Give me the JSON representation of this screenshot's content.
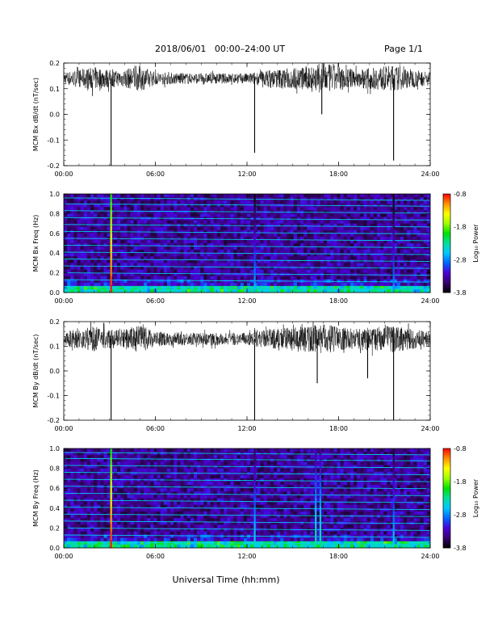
{
  "header": {
    "title": "2018/06/01   00:00–24:00 UT",
    "page": "Page 1/1"
  },
  "footer": {
    "xlabel": "Universal Time (hh:mm)"
  },
  "colorbar": {
    "label": "Log₁₀ Power",
    "ticks": [
      "-0.8",
      "-1.8",
      "-2.8",
      "-3.8"
    ],
    "colors": [
      "#000000",
      "#3a0070",
      "#4b00d8",
      "#0066ff",
      "#00c8ff",
      "#00e0a0",
      "#00e000",
      "#a0ff00",
      "#ffff00",
      "#ff9000",
      "#ff0000"
    ]
  },
  "chart_data": [
    {
      "type": "line",
      "ylabel": "MCM Bx dB/dt (nT/sec)",
      "xticks": [
        "00:00",
        "06:00",
        "12:00",
        "18:00",
        "24:00"
      ],
      "yticks": [
        "0.2",
        "0.1",
        "0.0",
        "-0.1",
        "-0.2"
      ],
      "xlim": [
        0,
        24
      ],
      "ylim": [
        -0.2,
        0.2
      ],
      "baseline": 0.14,
      "noise_amplitude": [
        [
          0,
          0.025
        ],
        [
          2,
          0.045
        ],
        [
          3.5,
          0.03
        ],
        [
          5,
          0.05
        ],
        [
          6,
          0.025
        ],
        [
          8.5,
          0.02
        ],
        [
          12,
          0.02
        ],
        [
          13.5,
          0.035
        ],
        [
          15.5,
          0.045
        ],
        [
          17,
          0.06
        ],
        [
          19,
          0.035
        ],
        [
          21.5,
          0.05
        ],
        [
          24,
          0.025
        ]
      ],
      "spikes": [
        {
          "x": 3.1,
          "y": -0.2
        },
        {
          "x": 12.5,
          "y": -0.15
        },
        {
          "x": 16.9,
          "y": 0.0
        },
        {
          "x": 21.6,
          "y": -0.18
        }
      ],
      "color": "#000000"
    },
    {
      "type": "heatmap",
      "ylabel": "MCM Bx Freq (Hz)",
      "xticks": [
        "00:00",
        "06:00",
        "12:00",
        "18:00",
        "24:00"
      ],
      "yticks": [
        "1.0",
        "0.8",
        "0.6",
        "0.4",
        "0.2",
        "0.0"
      ],
      "xlim": [
        0,
        24
      ],
      "ylim": [
        0,
        1.0
      ],
      "zlim": [
        -3.8,
        -0.8
      ],
      "harmonic_lines_hz": [
        0.06,
        0.13,
        0.2,
        0.27,
        0.34,
        0.41,
        0.48,
        0.55,
        0.62,
        0.69,
        0.76,
        0.83,
        0.9,
        0.96
      ],
      "vertical_events": [
        {
          "x": 3.1,
          "peak_power": -0.8
        },
        {
          "x": 12.5,
          "peak_power": -2.6
        },
        {
          "x": 21.6,
          "peak_power": -2.7
        }
      ]
    },
    {
      "type": "line",
      "ylabel": "MCM By dB/dt (nT/sec)",
      "xticks": [
        "00:00",
        "06:00",
        "12:00",
        "18:00",
        "24:00"
      ],
      "yticks": [
        "0.2",
        "0.1",
        "0.0",
        "-0.1",
        "-0.2"
      ],
      "xlim": [
        0,
        24
      ],
      "ylim": [
        -0.2,
        0.2
      ],
      "baseline": 0.13,
      "noise_amplitude": [
        [
          0,
          0.03
        ],
        [
          2,
          0.05
        ],
        [
          3.5,
          0.035
        ],
        [
          5,
          0.055
        ],
        [
          6,
          0.03
        ],
        [
          8.5,
          0.025
        ],
        [
          12,
          0.025
        ],
        [
          13.5,
          0.04
        ],
        [
          15.5,
          0.05
        ],
        [
          17,
          0.06
        ],
        [
          19,
          0.04
        ],
        [
          21.5,
          0.055
        ],
        [
          24,
          0.03
        ]
      ],
      "spikes": [
        {
          "x": 3.1,
          "y": -0.2
        },
        {
          "x": 12.5,
          "y": -0.2
        },
        {
          "x": 16.6,
          "y": -0.05
        },
        {
          "x": 19.9,
          "y": -0.03
        },
        {
          "x": 21.6,
          "y": -0.2
        }
      ],
      "color": "#000000"
    },
    {
      "type": "heatmap",
      "ylabel": "MCM By Freq (Hz)",
      "xticks": [
        "00:00",
        "06:00",
        "12:00",
        "18:00",
        "24:00"
      ],
      "yticks": [
        "1.0",
        "0.8",
        "0.6",
        "0.4",
        "0.2",
        "0.0"
      ],
      "xlim": [
        0,
        24
      ],
      "ylim": [
        0,
        1.0
      ],
      "zlim": [
        -3.8,
        -0.8
      ],
      "harmonic_lines_hz": [
        0.06,
        0.13,
        0.2,
        0.27,
        0.34,
        0.41,
        0.48,
        0.55,
        0.62,
        0.69,
        0.76,
        0.83,
        0.9,
        0.96
      ],
      "vertical_events": [
        {
          "x": 3.1,
          "peak_power": -0.8
        },
        {
          "x": 12.5,
          "peak_power": -2.4
        },
        {
          "x": 16.5,
          "peak_power": -2.2
        },
        {
          "x": 16.8,
          "peak_power": -2.2
        },
        {
          "x": 21.6,
          "peak_power": -2.5
        }
      ]
    }
  ]
}
